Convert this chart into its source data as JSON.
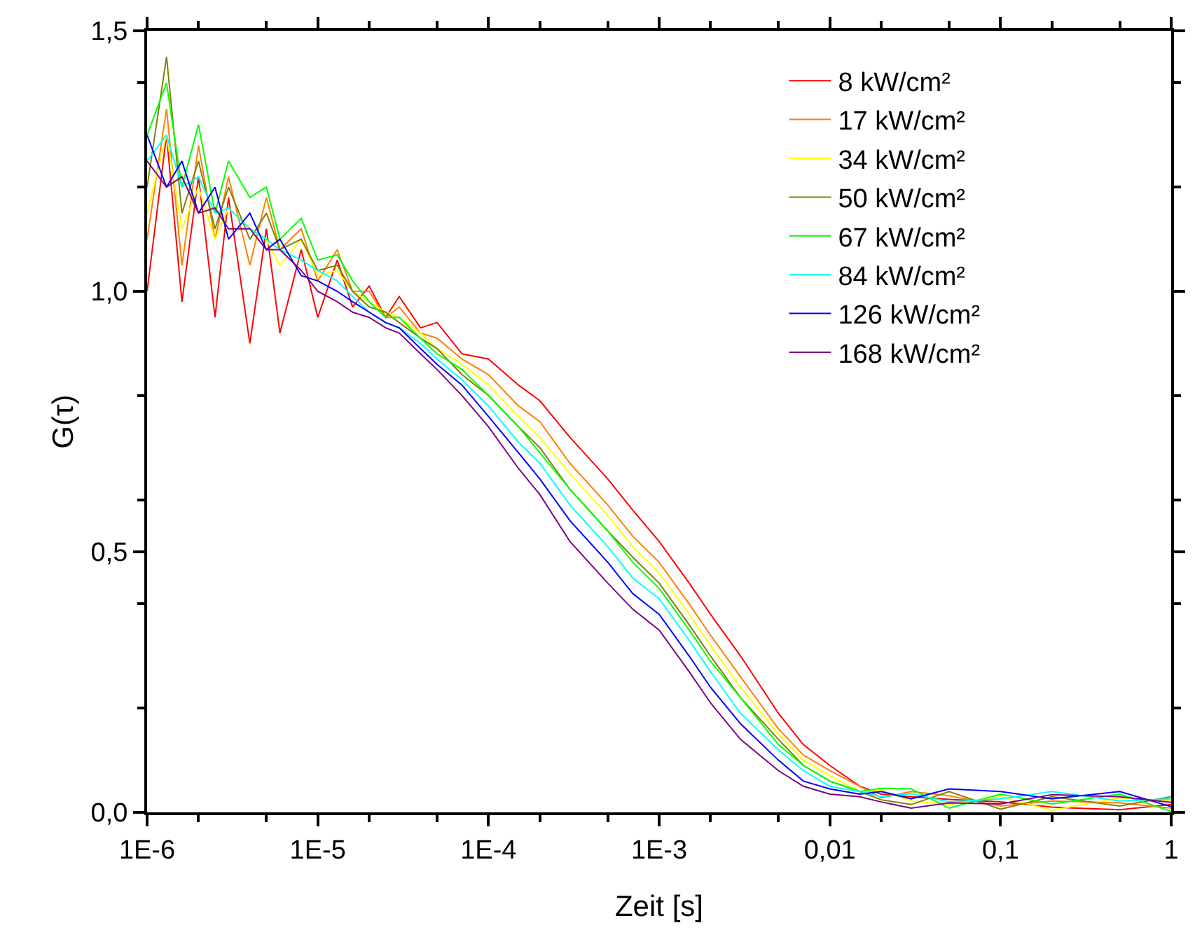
{
  "chart_data": {
    "type": "line",
    "xlabel": "Zeit [s]",
    "ylabel": "G(τ)",
    "log": "x",
    "grid": false,
    "legend": "top right",
    "marker": "none",
    "line_style": "solid",
    "xlim": [
      1e-06,
      1
    ],
    "ylim": [
      0,
      1.5
    ],
    "xticks": [
      {
        "value": 1e-06,
        "label": "1E-6"
      },
      {
        "value": 1e-05,
        "label": "1E-5"
      },
      {
        "value": 0.0001,
        "label": "1E-4"
      },
      {
        "value": 0.001,
        "label": "1E-3"
      },
      {
        "value": 0.01,
        "label": "0,01"
      },
      {
        "value": 0.1,
        "label": "0,1"
      },
      {
        "value": 1,
        "label": "1"
      }
    ],
    "yticks": [
      {
        "value": 0,
        "label": "0,0"
      },
      {
        "value": 0.5,
        "label": "0,5"
      },
      {
        "value": 1,
        "label": "1,0"
      },
      {
        "value": 1.5,
        "label": "1,5"
      }
    ],
    "x": [
      1e-06,
      1.3e-06,
      1.6e-06,
      2e-06,
      2.5e-06,
      3e-06,
      4e-06,
      5e-06,
      6e-06,
      8e-06,
      1e-05,
      1.3e-05,
      1.6e-05,
      2e-05,
      2.5e-05,
      3e-05,
      4e-05,
      5e-05,
      7e-05,
      0.0001,
      0.00015,
      0.0002,
      0.0003,
      0.0005,
      0.0007,
      0.001,
      0.0015,
      0.002,
      0.003,
      0.005,
      0.007,
      0.01,
      0.015,
      0.02,
      0.03,
      0.05,
      0.1,
      0.2,
      0.5,
      1
    ],
    "series": [
      {
        "name": "8 kW/cm²",
        "color": "#ff0000",
        "values": [
          1.0,
          1.3,
          0.98,
          1.22,
          0.95,
          1.18,
          0.9,
          1.12,
          0.92,
          1.08,
          0.95,
          1.06,
          0.97,
          1.01,
          0.95,
          0.99,
          0.93,
          0.94,
          0.88,
          0.87,
          0.82,
          0.79,
          0.72,
          0.64,
          0.58,
          0.52,
          0.44,
          0.38,
          0.3,
          0.19,
          0.13,
          0.09,
          0.05,
          0.035,
          0.03,
          0.025,
          0.02,
          0.01,
          0.005,
          0.015
        ]
      },
      {
        "name": "17 kW/cm²",
        "color": "#ff8000",
        "values": [
          1.1,
          1.35,
          1.05,
          1.28,
          1.1,
          1.22,
          1.05,
          1.18,
          1.08,
          1.12,
          1.02,
          1.08,
          1.0,
          1.0,
          0.95,
          0.97,
          0.92,
          0.91,
          0.87,
          0.84,
          0.78,
          0.75,
          0.67,
          0.59,
          0.53,
          0.48,
          0.4,
          0.34,
          0.26,
          0.16,
          0.11,
          0.08,
          0.05,
          0.028,
          0.04,
          0.032,
          0.012,
          0.022,
          0.018,
          0.008
        ]
      },
      {
        "name": "34 kW/cm²",
        "color": "#ffff00",
        "values": [
          1.15,
          1.3,
          1.12,
          1.2,
          1.1,
          1.16,
          1.12,
          1.1,
          1.05,
          1.1,
          1.03,
          1.04,
          1.0,
          0.98,
          0.96,
          0.95,
          0.92,
          0.89,
          0.86,
          0.82,
          0.76,
          0.72,
          0.65,
          0.57,
          0.51,
          0.46,
          0.38,
          0.32,
          0.24,
          0.15,
          0.1,
          0.07,
          0.04,
          0.042,
          0.022,
          0.015,
          0.03,
          0.004,
          0.028,
          0.022
        ]
      },
      {
        "name": "50 kW/cm²",
        "color": "#808000",
        "values": [
          1.2,
          1.45,
          1.15,
          1.25,
          1.12,
          1.2,
          1.1,
          1.15,
          1.08,
          1.1,
          1.04,
          1.05,
          1.0,
          0.97,
          0.96,
          0.94,
          0.91,
          0.89,
          0.84,
          0.8,
          0.74,
          0.7,
          0.62,
          0.54,
          0.49,
          0.44,
          0.36,
          0.3,
          0.22,
          0.14,
          0.09,
          0.06,
          0.04,
          0.024,
          0.015,
          0.04,
          0.006,
          0.03,
          0.012,
          0.03
        ]
      },
      {
        "name": "67 kW/cm²",
        "color": "#00ff00",
        "values": [
          1.3,
          1.4,
          1.2,
          1.32,
          1.15,
          1.25,
          1.18,
          1.2,
          1.1,
          1.14,
          1.06,
          1.07,
          1.02,
          0.98,
          0.95,
          0.95,
          0.91,
          0.88,
          0.85,
          0.8,
          0.74,
          0.69,
          0.62,
          0.54,
          0.48,
          0.43,
          0.35,
          0.29,
          0.22,
          0.13,
          0.09,
          0.06,
          0.04,
          0.046,
          0.045,
          0.008,
          0.035,
          0.016,
          0.035,
          0.002
        ]
      },
      {
        "name": "84 kW/cm²",
        "color": "#00ffff",
        "values": [
          1.25,
          1.3,
          1.2,
          1.22,
          1.15,
          1.16,
          1.12,
          1.1,
          1.08,
          1.06,
          1.04,
          1.02,
          0.99,
          0.96,
          0.94,
          0.93,
          0.9,
          0.87,
          0.83,
          0.78,
          0.71,
          0.67,
          0.59,
          0.51,
          0.45,
          0.41,
          0.33,
          0.27,
          0.19,
          0.12,
          0.08,
          0.05,
          0.04,
          0.03,
          0.036,
          0.02,
          0.026,
          0.04,
          0.022,
          0.026
        ]
      },
      {
        "name": "126 kW/cm²",
        "color": "#0000ff",
        "values": [
          1.3,
          1.2,
          1.25,
          1.15,
          1.2,
          1.1,
          1.15,
          1.08,
          1.1,
          1.03,
          1.02,
          1.0,
          0.98,
          0.96,
          0.94,
          0.93,
          0.89,
          0.86,
          0.82,
          0.76,
          0.69,
          0.64,
          0.56,
          0.48,
          0.42,
          0.38,
          0.3,
          0.24,
          0.17,
          0.1,
          0.06,
          0.045,
          0.035,
          0.04,
          0.026,
          0.045,
          0.04,
          0.026,
          0.04,
          0.011
        ]
      },
      {
        "name": "168 kW/cm²",
        "color": "#800080",
        "values": [
          1.25,
          1.2,
          1.22,
          1.15,
          1.16,
          1.12,
          1.12,
          1.08,
          1.08,
          1.04,
          1.0,
          0.98,
          0.96,
          0.95,
          0.93,
          0.92,
          0.88,
          0.85,
          0.8,
          0.74,
          0.66,
          0.61,
          0.52,
          0.44,
          0.39,
          0.35,
          0.27,
          0.21,
          0.14,
          0.08,
          0.05,
          0.035,
          0.03,
          0.02,
          0.008,
          0.018,
          0.016,
          0.034,
          0.03,
          0.019
        ]
      }
    ]
  }
}
